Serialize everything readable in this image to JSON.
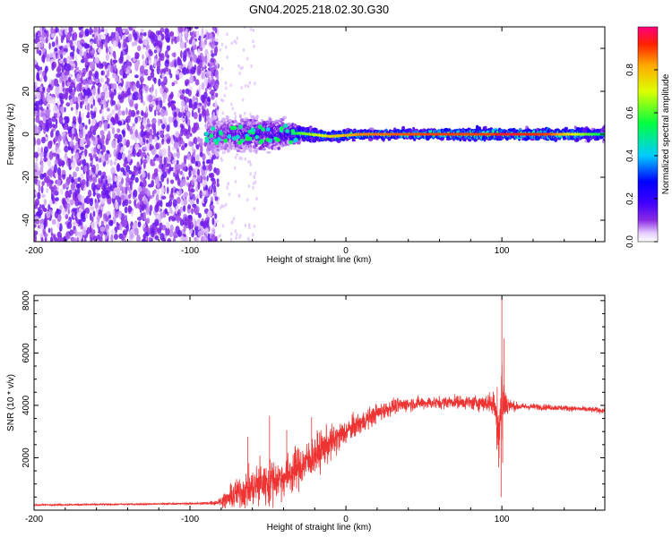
{
  "title": "GN04.2025.218.02.30.G30",
  "chart_data": [
    {
      "type": "heatmap",
      "xlabel": "Height of straight line (km)",
      "ylabel": "Frequency (Hz)",
      "xlim": [
        -200,
        166
      ],
      "ylim": [
        -50,
        50
      ],
      "xticks": [
        -200,
        -100,
        0,
        100
      ],
      "yticks": [
        -40,
        -20,
        0,
        20,
        40
      ],
      "colorbar": {
        "label": "Normalized spectral amplitude",
        "range": [
          0,
          1
        ],
        "ticks": [
          "0.0",
          "0.2",
          "0.4",
          "0.6",
          "0.8"
        ],
        "tick_values": [
          0,
          0.2,
          0.4,
          0.6,
          0.8
        ],
        "colormap": "rainbow"
      },
      "noise_region": {
        "x": [
          -200,
          -82
        ],
        "y": [
          -50,
          50
        ],
        "level": 0.05
      },
      "ridge": [
        {
          "x": -88,
          "f": 0,
          "half_width": 8,
          "level": 0.2
        },
        {
          "x": -70,
          "f": 0,
          "half_width": 7,
          "level": 0.25
        },
        {
          "x": -50,
          "f": 0,
          "half_width": 7,
          "level": 0.3
        },
        {
          "x": -40,
          "f": 0,
          "half_width": 6,
          "level": 0.3
        },
        {
          "x": -30,
          "f": 0.5,
          "half_width": 3,
          "level": 0.6
        },
        {
          "x": -10,
          "f": -1,
          "half_width": 2.5,
          "level": 0.75
        },
        {
          "x": 10,
          "f": 0,
          "half_width": 2,
          "level": 0.85
        },
        {
          "x": 50,
          "f": 0,
          "half_width": 2,
          "level": 0.9
        },
        {
          "x": 95,
          "f": 0,
          "half_width": 3,
          "level": 0.9
        },
        {
          "x": 100,
          "f": 0,
          "half_width": 2,
          "level": 0.95
        },
        {
          "x": 130,
          "f": 0,
          "half_width": 2.5,
          "level": 0.9
        },
        {
          "x": 166,
          "f": 0,
          "half_width": 3,
          "level": 0.5
        }
      ]
    },
    {
      "type": "line",
      "xlabel": "Height of straight line (km)",
      "ylabel": "SNR (10 * v/v)",
      "xlim": [
        -200,
        166
      ],
      "ylim": [
        0,
        8200
      ],
      "xticks": [
        -200,
        -100,
        0,
        100
      ],
      "yticks": [
        2000,
        4000,
        6000,
        8000
      ],
      "color": "#ee3333",
      "series": [
        {
          "x": [
            -200,
            -150,
            -100,
            -90,
            -82,
            -75,
            -70,
            -65,
            -60,
            -55,
            -50,
            -45,
            -40,
            -35,
            -30,
            -25,
            -20,
            -15,
            -10,
            -5,
            0,
            10,
            20,
            30,
            40,
            50,
            60,
            70,
            80,
            90,
            95,
            98,
            100,
            102,
            105,
            110,
            120,
            140,
            166
          ],
          "y": [
            200,
            220,
            250,
            260,
            300,
            450,
            650,
            750,
            850,
            1000,
            1050,
            1150,
            1250,
            1450,
            1650,
            1850,
            2100,
            2350,
            2550,
            2750,
            3000,
            3350,
            3700,
            3950,
            4050,
            4100,
            4100,
            4150,
            4100,
            4100,
            4050,
            3000,
            4200,
            4100,
            4000,
            3950,
            3950,
            3900,
            3800
          ],
          "noise": [
            50,
            50,
            60,
            70,
            200,
            700,
            1000,
            1100,
            1300,
            1500,
            1400,
            1300,
            1300,
            1400,
            1400,
            1300,
            1300,
            1200,
            1100,
            1000,
            800,
            700,
            600,
            500,
            450,
            400,
            400,
            400,
            450,
            550,
            800,
            2200,
            3900,
            1200,
            400,
            250,
            200,
            180,
            180
          ],
          "spikes": [
            {
              "x": -63,
              "y": 2800
            },
            {
              "x": -49,
              "y": 3600
            },
            {
              "x": -38,
              "y": 3050
            },
            {
              "x": -22,
              "y": 3550
            },
            {
              "x": 92,
              "y": 4500
            },
            {
              "x": 97,
              "y": 4700
            },
            {
              "x": 99.5,
              "y": 500
            },
            {
              "x": 100,
              "y": 8200
            },
            {
              "x": 100.5,
              "y": 1800
            },
            {
              "x": 101.5,
              "y": 6550
            }
          ]
        }
      ]
    }
  ]
}
